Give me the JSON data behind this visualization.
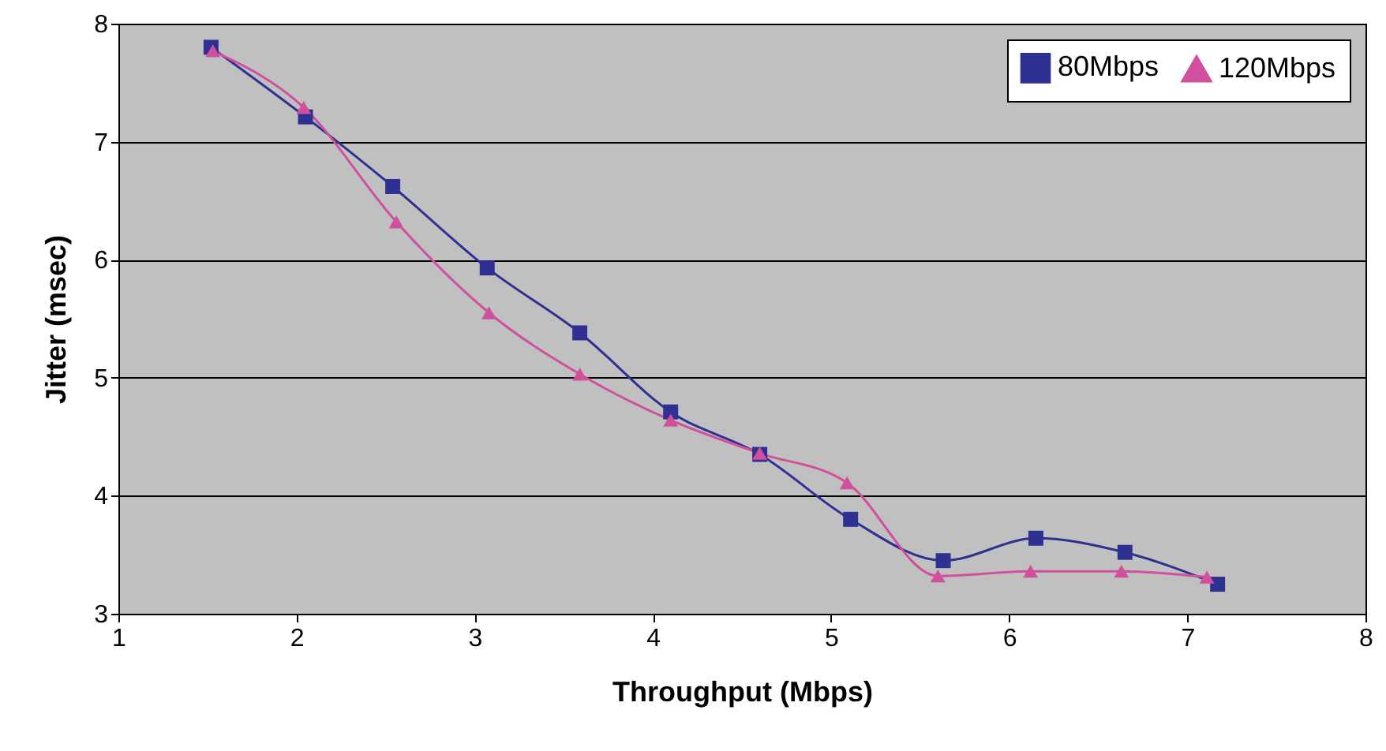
{
  "chart_data": {
    "type": "line",
    "xlabel": "Throughput (Mbps)",
    "ylabel": "Jitter (msec)",
    "xlim": [
      1,
      8
    ],
    "ylim": [
      3,
      8
    ],
    "xticks": [
      1,
      2,
      3,
      4,
      5,
      6,
      7,
      8
    ],
    "yticks": [
      3,
      4,
      5,
      6,
      7,
      8
    ],
    "grid": "y",
    "legend": "top right",
    "series": [
      {
        "name": "80Mbps",
        "color": "#2e3192",
        "marker": "square",
        "x": [
          1.52,
          2.05,
          2.54,
          3.07,
          3.59,
          4.1,
          4.6,
          5.11,
          5.63,
          6.15,
          6.65,
          7.17
        ],
        "values": [
          7.8,
          7.21,
          6.62,
          5.93,
          5.38,
          4.71,
          4.35,
          3.8,
          3.45,
          3.64,
          3.52,
          3.25
        ]
      },
      {
        "name": "120Mbps",
        "color": "#d0509e",
        "marker": "triangle",
        "x": [
          1.53,
          2.04,
          2.56,
          3.08,
          3.59,
          4.1,
          4.6,
          5.09,
          5.6,
          6.12,
          6.63,
          7.11
        ],
        "values": [
          7.77,
          7.29,
          6.32,
          5.55,
          5.03,
          4.64,
          4.36,
          4.11,
          3.32,
          3.36,
          3.36,
          3.31
        ]
      }
    ]
  }
}
